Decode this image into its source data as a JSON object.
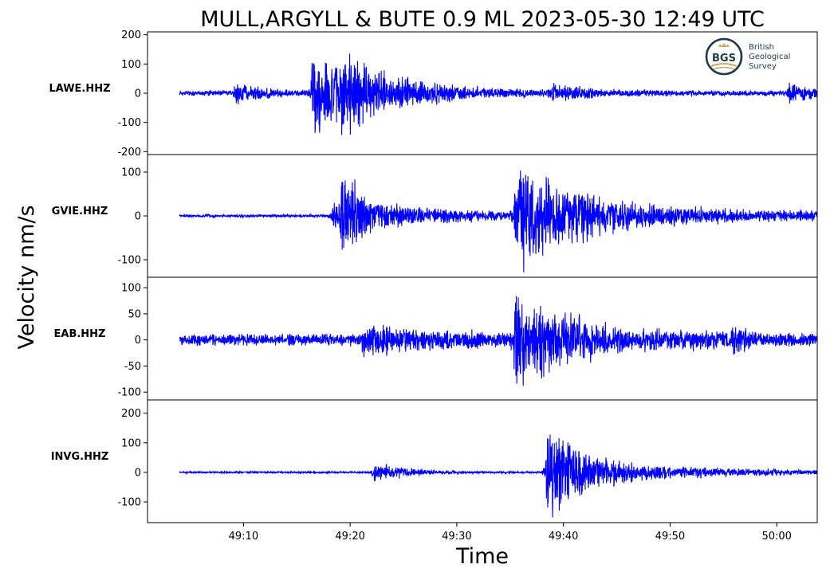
{
  "chart_data": {
    "type": "line",
    "title": "MULL,ARGYLL & BUTE 0.9 ML   2023-05-30 12:49 UTC",
    "xlabel": "Time",
    "ylabel": "Velocity nm/s",
    "line_color": "#0000ff",
    "x_ticks": [
      "49:10",
      "49:20",
      "49:30",
      "49:40",
      "49:50",
      "50:00"
    ],
    "x_tick_seconds": [
      10,
      20,
      30,
      40,
      50,
      60
    ],
    "xlim_seconds": [
      1.0,
      63.8
    ],
    "trace_range_seconds": [
      4.0,
      64.2
    ],
    "series": [
      {
        "name": "LAWE.HHZ",
        "ylim": [
          -210,
          210
        ],
        "yticks": [
          200,
          100,
          0,
          -100,
          -200
        ],
        "ytick_labels": [
          "200",
          "100",
          "0",
          "-100",
          "-200"
        ],
        "noise": 12,
        "events": [
          {
            "t": 9.0,
            "amp": 45,
            "decay": 2.5
          },
          {
            "t": 16.3,
            "amp": 190,
            "decay": 4.0
          },
          {
            "t": 19.0,
            "amp": 110,
            "decay": 6.0
          },
          {
            "t": 38.8,
            "amp": 35,
            "decay": 3.0
          },
          {
            "t": 61.0,
            "amp": 45,
            "decay": 2.5
          }
        ]
      },
      {
        "name": "GVIE.HHZ",
        "ylim": [
          -140,
          140
        ],
        "yticks": [
          100,
          0,
          -100
        ],
        "ytick_labels": [
          "100",
          "0",
          "-100"
        ],
        "noise": 4,
        "events": [
          {
            "t": 18.2,
            "amp": 60,
            "decay": 1.2
          },
          {
            "t": 19.0,
            "amp": 130,
            "decay": 1.5
          },
          {
            "t": 20.0,
            "amp": 40,
            "decay": 10.0
          },
          {
            "t": 35.3,
            "amp": 130,
            "decay": 5.0
          },
          {
            "t": 36.0,
            "amp": 40,
            "decay": 20.0
          }
        ]
      },
      {
        "name": "EAB.HHZ",
        "ylim": [
          -115,
          120
        ],
        "yticks": [
          100,
          50,
          0,
          -50,
          -100
        ],
        "ytick_labels": [
          "100",
          "50",
          "0",
          "-50",
          "-100"
        ],
        "noise": 14,
        "events": [
          {
            "t": 21.0,
            "amp": 30,
            "decay": 8.0
          },
          {
            "t": 35.3,
            "amp": 108,
            "decay": 3.5
          },
          {
            "t": 37.0,
            "amp": 30,
            "decay": 12.0
          },
          {
            "t": 55.8,
            "amp": 40,
            "decay": 0.8
          }
        ]
      },
      {
        "name": "INVG.HHZ",
        "ylim": [
          -170,
          245
        ],
        "yticks": [
          200,
          100,
          0,
          -100
        ],
        "ytick_labels": [
          "200",
          "100",
          "0",
          "-100"
        ],
        "noise": 4,
        "events": [
          {
            "t": 22.0,
            "amp": 45,
            "decay": 3.0
          },
          {
            "t": 38.3,
            "amp": 230,
            "decay": 2.5
          },
          {
            "t": 39.5,
            "amp": 55,
            "decay": 12.0
          }
        ]
      }
    ],
    "logo": {
      "monogram": "BGS",
      "lines": [
        "British",
        "Geological",
        "Survey"
      ]
    }
  }
}
